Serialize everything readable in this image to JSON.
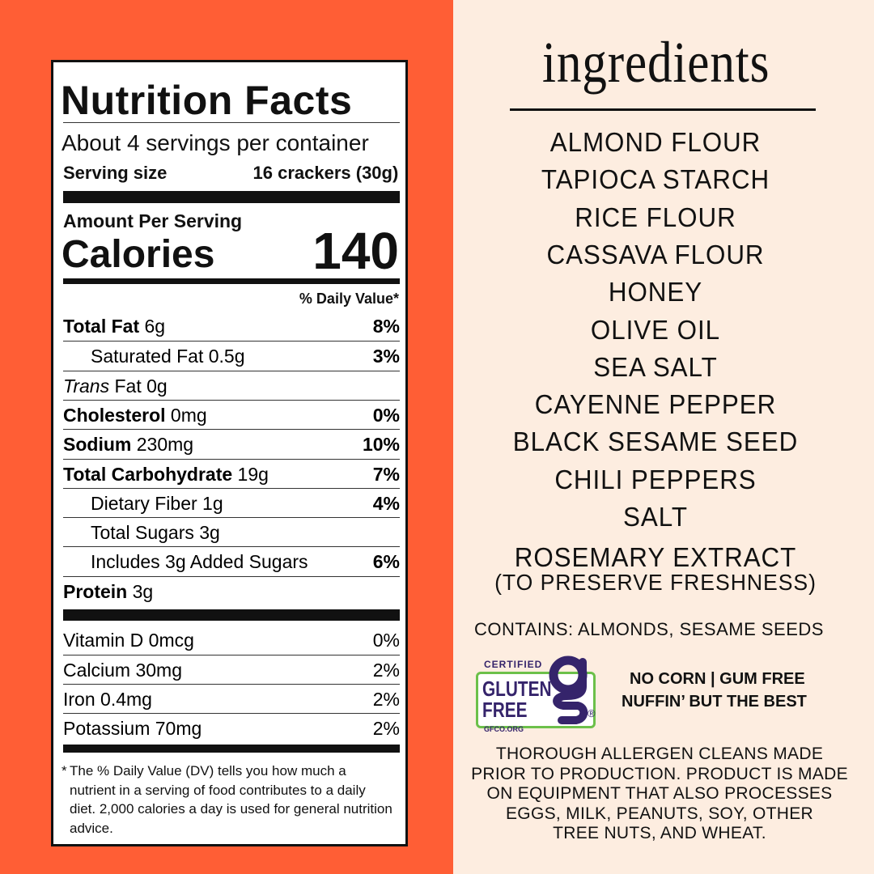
{
  "nutrition": {
    "title": "Nutrition Facts",
    "servings": "About 4 servings per container",
    "serving_size_label": "Serving size",
    "serving_size_value": "16 crackers (30g)",
    "amount_per_serving": "Amount Per Serving",
    "calories_label": "Calories",
    "calories_value": "140",
    "dv_header": "% Daily Value*",
    "rows": [
      {
        "name": "Total Fat",
        "amount": "6g",
        "dv": "8%"
      },
      {
        "name": "Saturated Fat 0.5g",
        "amount": "",
        "dv": "3%"
      },
      {
        "name": "Trans",
        "amount": "Fat 0g",
        "dv": ""
      },
      {
        "name": "Cholesterol",
        "amount": "0mg",
        "dv": "0%"
      },
      {
        "name": "Sodium",
        "amount": "230mg",
        "dv": "10%"
      },
      {
        "name": "Total Carbohydrate",
        "amount": "19g",
        "dv": "7%"
      },
      {
        "name": "Dietary Fiber 1g",
        "amount": "",
        "dv": "4%"
      },
      {
        "name": "Total Sugars 3g",
        "amount": "",
        "dv": ""
      },
      {
        "name": "Includes 3g Added Sugars",
        "amount": "",
        "dv": "6%"
      },
      {
        "name": "Protein",
        "amount": "3g",
        "dv": ""
      }
    ],
    "vitamins": [
      {
        "name": "Vitamin D 0mcg",
        "dv": "0%"
      },
      {
        "name": "Calcium 30mg",
        "dv": "2%"
      },
      {
        "name": "Iron 0.4mg",
        "dv": "2%"
      },
      {
        "name": "Potassium 70mg",
        "dv": "2%"
      }
    ],
    "footnote_star": "*",
    "footnote": "The % Daily Value (DV) tells you how much a nutrient in a serving of food contributes to a daily diet. 2,000 calories a day is used for general nutrition advice."
  },
  "ingredients": {
    "title": "ingredients",
    "items": [
      "ALMOND FLOUR",
      "TAPIOCA STARCH",
      "RICE FLOUR",
      "CASSAVA FLOUR",
      "HONEY",
      "OLIVE OIL",
      "SEA SALT",
      "CAYENNE PEPPER",
      "BLACK SESAME SEED",
      "CHILI PEPPERS",
      "SALT",
      "ROSEMARY EXTRACT"
    ],
    "note": "(TO PRESERVE FRESHNESS)",
    "contains": "CONTAINS: ALMONDS, SESAME SEEDS",
    "badge": {
      "certified": "CERTIFIED",
      "gluten": "GLUTEN",
      "free": "FREE",
      "site": "GFCO.ORG",
      "reg": "®"
    },
    "claims": [
      "NO CORN | GUM FREE",
      "NUFFIN’ BUT THE BEST"
    ],
    "allergen": [
      "THOROUGH ALLERGEN CLEANS MADE",
      "PRIOR TO PRODUCTION. PRODUCT IS MADE",
      "ON EQUIPMENT THAT ALSO PROCESSES",
      "EGGS, MILK, PEANUTS, SOY, OTHER",
      "TREE NUTS, AND WHEAT."
    ]
  },
  "colors": {
    "orange": "#FF5E35",
    "cream": "#FDEDE0",
    "badge_purple": "#35246B",
    "badge_green": "#6CC04A"
  }
}
